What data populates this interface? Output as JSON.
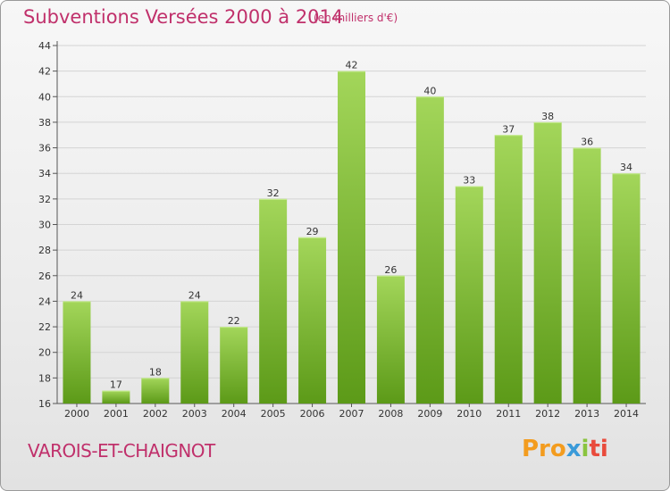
{
  "title": "Subventions Versées 2000 à 2014",
  "subtitle": "(en milliers d'€)",
  "commune": "VAROIS-ET-CHAIGNOT",
  "logo": {
    "p1": "Pro",
    "p2": "x",
    "p3": "i",
    "p4": "ti"
  },
  "colors": {
    "title": "#c0306b",
    "bar_top": "#9fd356",
    "bar_bottom": "#5f9e1a"
  },
  "chart_data": {
    "type": "bar",
    "categories": [
      "2000",
      "2001",
      "2002",
      "2003",
      "2004",
      "2005",
      "2006",
      "2007",
      "2008",
      "2009",
      "2010",
      "2011",
      "2012",
      "2013",
      "2014"
    ],
    "values": [
      24,
      17,
      18,
      24,
      22,
      32,
      29,
      42,
      26,
      40,
      33,
      37,
      38,
      36,
      34
    ],
    "value_labels": [
      "24",
      "17",
      "18",
      "24",
      "22",
      "32",
      "29",
      "42",
      "26",
      "40",
      "33",
      "37",
      "38",
      "36",
      "34"
    ],
    "yticks": [
      "16",
      "18",
      "20",
      "22",
      "24",
      "26",
      "28",
      "30",
      "32",
      "34",
      "36",
      "38",
      "40",
      "42",
      "44"
    ],
    "ylim": [
      16,
      44
    ],
    "grid": true,
    "xlabel": "",
    "ylabel": ""
  }
}
